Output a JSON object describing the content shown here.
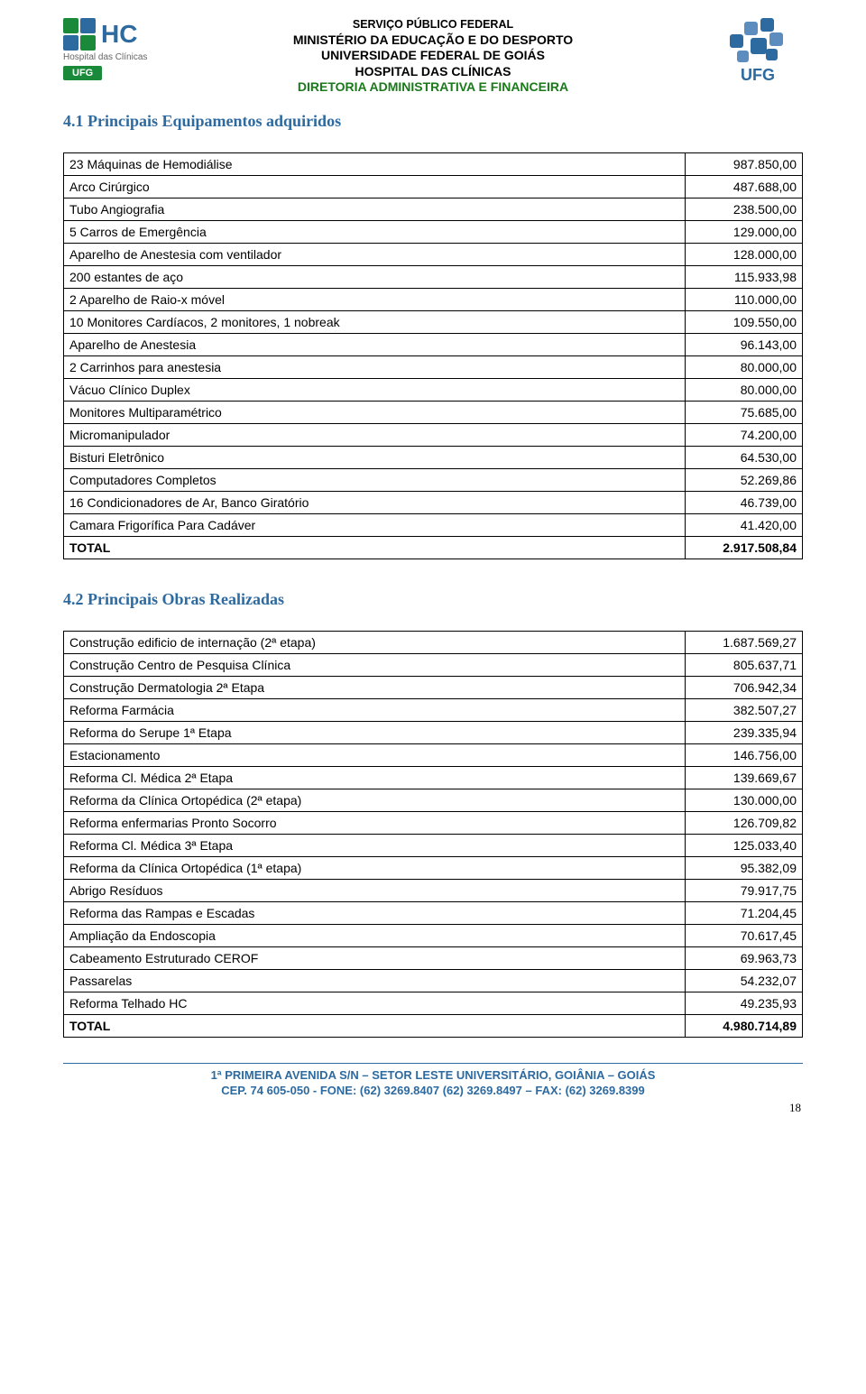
{
  "header": {
    "line1": "SERVIÇO PÚBLICO FEDERAL",
    "line2": "MINISTÉRIO DA EDUCAÇÃO E DO DESPORTO",
    "line3": "UNIVERSIDADE FEDERAL DE GOIÁS",
    "line4": "HOSPITAL DAS CLÍNICAS",
    "line5": "DIRETORIA ADMINISTRATIVA E FINANCEIRA",
    "hc_label_top": "Hospital das Clínicas",
    "hc_ufg": "UFG",
    "ufg_label": "UFG"
  },
  "section1": {
    "title": "4.1 Principais Equipamentos adquiridos",
    "rows": [
      {
        "label": "23 Máquinas de Hemodiálise",
        "value": "987.850,00"
      },
      {
        "label": "Arco Cirúrgico",
        "value": "487.688,00"
      },
      {
        "label": "Tubo Angiografia",
        "value": "238.500,00"
      },
      {
        "label": "5 Carros de Emergência",
        "value": "129.000,00"
      },
      {
        "label": "Aparelho de Anestesia com ventilador",
        "value": "128.000,00"
      },
      {
        "label": "200 estantes de aço",
        "value": "115.933,98"
      },
      {
        "label": "2 Aparelho de Raio-x móvel",
        "value": "110.000,00"
      },
      {
        "label": "10 Monitores Cardíacos, 2 monitores, 1 nobreak",
        "value": "109.550,00"
      },
      {
        "label": "Aparelho de Anestesia",
        "value": "96.143,00"
      },
      {
        "label": "2 Carrinhos para anestesia",
        "value": "80.000,00"
      },
      {
        "label": "Vácuo Clínico Duplex",
        "value": "80.000,00"
      },
      {
        "label": "Monitores Multiparamétrico",
        "value": "75.685,00"
      },
      {
        "label": "Micromanipulador",
        "value": "74.200,00"
      },
      {
        "label": "Bisturi Eletrônico",
        "value": "64.530,00"
      },
      {
        "label": "Computadores Completos",
        "value": "52.269,86"
      },
      {
        "label": "16 Condicionadores de Ar, Banco Giratório",
        "value": "46.739,00"
      },
      {
        "label": "Camara Frigorífica Para Cadáver",
        "value": "41.420,00"
      }
    ],
    "total_label": "TOTAL",
    "total_value": "2.917.508,84"
  },
  "section2": {
    "title": "4.2 Principais Obras Realizadas",
    "rows": [
      {
        "label": "Construção edificio de internação (2ª etapa)",
        "value": "1.687.569,27"
      },
      {
        "label": "Construção Centro de Pesquisa Clínica",
        "value": "805.637,71"
      },
      {
        "label": "Construção Dermatologia 2ª Etapa",
        "value": "706.942,34"
      },
      {
        "label": "Reforma Farmácia",
        "value": "382.507,27"
      },
      {
        "label": "Reforma do Serupe 1ª Etapa",
        "value": "239.335,94"
      },
      {
        "label": "Estacionamento",
        "value": "146.756,00"
      },
      {
        "label": "Reforma Cl. Médica 2ª Etapa",
        "value": "139.669,67"
      },
      {
        "label": "Reforma da Clínica Ortopédica (2ª etapa)",
        "value": "130.000,00"
      },
      {
        "label": "Reforma enfermarias Pronto Socorro",
        "value": "126.709,82"
      },
      {
        "label": "Reforma Cl. Médica 3ª Etapa",
        "value": "125.033,40"
      },
      {
        "label": "Reforma da Clínica Ortopédica (1ª etapa)",
        "value": "95.382,09"
      },
      {
        "label": "Abrigo Resíduos",
        "value": "79.917,75"
      },
      {
        "label": "Reforma das Rampas e Escadas",
        "value": "71.204,45"
      },
      {
        "label": "Ampliação da Endoscopia",
        "value": "70.617,45"
      },
      {
        "label": "Cabeamento Estruturado CEROF",
        "value": "69.963,73"
      },
      {
        "label": "Passarelas",
        "value": "54.232,07"
      },
      {
        "label": "Reforma Telhado HC",
        "value": "49.235,93"
      }
    ],
    "total_label": "TOTAL",
    "total_value": "4.980.714,89"
  },
  "footer": {
    "line1": "1ª PRIMEIRA AVENIDA S/N – SETOR LESTE UNIVERSITÁRIO, GOIÂNIA – GOIÁS",
    "line2": "CEP.  74 605-050  -  FONE: (62) 3269.8407  (62) 3269.8497 – FAX: (62) 3269.8399",
    "page": "18"
  }
}
